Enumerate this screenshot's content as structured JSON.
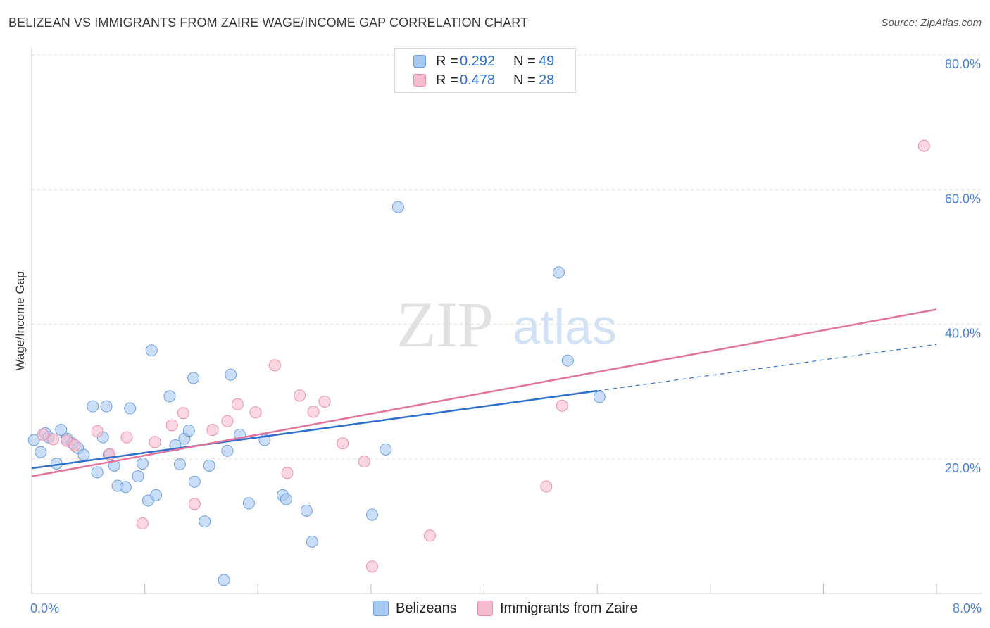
{
  "header": {
    "title": "BELIZEAN VS IMMIGRANTS FROM ZAIRE WAGE/INCOME GAP CORRELATION CHART",
    "source": "Source: ZipAtlas.com"
  },
  "watermark": {
    "zip": "ZIP",
    "atlas": "atlas"
  },
  "colors": {
    "blue_fill": "#a9c8f2",
    "blue_stroke": "#6d9ee0",
    "blue_line": "#2e6fcc",
    "pink_fill": "#f6bccd",
    "pink_stroke": "#ec8eaa",
    "pink_line": "#e2749b",
    "tick_label": "#4a7fd0",
    "grid": "#dedede"
  },
  "legend": {
    "rows": [
      {
        "r_label": "R =",
        "r_value": "0.292",
        "n_label": "N =",
        "n_value": "49",
        "color": "#a9c8f2",
        "stroke": "#6d9ee0"
      },
      {
        "r_label": "R =",
        "r_value": "0.478",
        "n_label": "N =",
        "n_value": "28",
        "color": "#f6bccd",
        "stroke": "#ec8eaa"
      }
    ]
  },
  "bottom_legend": {
    "series_a": "Belizeans",
    "series_b": "Immigrants from Zaire"
  },
  "chart_data": {
    "type": "scatter",
    "title": "BELIZEAN VS IMMIGRANTS FROM ZAIRE WAGE/INCOME GAP CORRELATION CHART",
    "xlabel": "",
    "ylabel": "Wage/Income Gap",
    "xlim": [
      0,
      8
    ],
    "ylim": [
      0,
      80
    ],
    "x_tick_labels": [
      "0.0%",
      "8.0%"
    ],
    "y_ticks": [
      20,
      40,
      60,
      80
    ],
    "y_tick_labels": [
      "20.0%",
      "40.0%",
      "60.0%",
      "80.0%"
    ],
    "grid": true,
    "legend_position": "top-center",
    "series": [
      {
        "name": "Belizeans",
        "r": 0.292,
        "n": 49,
        "trend": {
          "x0": 0.0,
          "y0": 18.6,
          "x1": 5.0,
          "y1": 30.1,
          "dashed_to_x": 8.0,
          "dashed_to_y": 37.0
        },
        "points": [
          [
            0.02,
            22.8
          ],
          [
            0.08,
            21.0
          ],
          [
            0.12,
            23.8
          ],
          [
            0.15,
            23.2
          ],
          [
            0.22,
            19.3
          ],
          [
            0.26,
            24.3
          ],
          [
            0.31,
            23.0
          ],
          [
            0.36,
            22.3
          ],
          [
            0.41,
            21.6
          ],
          [
            0.46,
            20.6
          ],
          [
            0.54,
            27.8
          ],
          [
            0.58,
            18.0
          ],
          [
            0.63,
            23.2
          ],
          [
            0.68,
            20.6
          ],
          [
            0.73,
            19.0
          ],
          [
            0.76,
            16.0
          ],
          [
            0.83,
            15.8
          ],
          [
            0.87,
            27.5
          ],
          [
            0.94,
            17.4
          ],
          [
            0.98,
            19.3
          ],
          [
            1.03,
            13.8
          ],
          [
            1.06,
            36.1
          ],
          [
            1.1,
            14.6
          ],
          [
            1.22,
            29.3
          ],
          [
            1.27,
            22.0
          ],
          [
            1.31,
            19.2
          ],
          [
            1.35,
            23.0
          ],
          [
            1.39,
            24.2
          ],
          [
            1.43,
            32.0
          ],
          [
            1.44,
            16.6
          ],
          [
            1.53,
            10.7
          ],
          [
            1.57,
            19.0
          ],
          [
            1.7,
            2.0
          ],
          [
            1.73,
            21.2
          ],
          [
            1.76,
            32.5
          ],
          [
            1.84,
            23.6
          ],
          [
            1.92,
            13.4
          ],
          [
            2.06,
            22.8
          ],
          [
            2.22,
            14.6
          ],
          [
            2.25,
            14.0
          ],
          [
            2.43,
            12.3
          ],
          [
            2.48,
            7.7
          ],
          [
            3.01,
            11.7
          ],
          [
            3.13,
            21.4
          ],
          [
            3.24,
            57.4
          ],
          [
            4.66,
            47.7
          ],
          [
            4.74,
            34.6
          ],
          [
            5.02,
            29.2
          ],
          [
            0.66,
            27.8
          ]
        ]
      },
      {
        "name": "Immigrants from Zaire",
        "r": 0.478,
        "n": 28,
        "trend": {
          "x0": 0.0,
          "y0": 17.4,
          "x1": 8.0,
          "y1": 42.2
        },
        "points": [
          [
            0.1,
            23.6
          ],
          [
            0.19,
            22.9
          ],
          [
            0.31,
            22.7
          ],
          [
            0.38,
            22.0
          ],
          [
            0.58,
            24.1
          ],
          [
            0.69,
            20.7
          ],
          [
            0.84,
            23.2
          ],
          [
            0.98,
            10.4
          ],
          [
            1.09,
            22.5
          ],
          [
            1.24,
            25.0
          ],
          [
            1.34,
            26.8
          ],
          [
            1.44,
            13.3
          ],
          [
            1.6,
            24.3
          ],
          [
            1.73,
            25.6
          ],
          [
            1.82,
            28.1
          ],
          [
            1.98,
            26.9
          ],
          [
            2.15,
            33.9
          ],
          [
            2.26,
            17.9
          ],
          [
            2.37,
            29.4
          ],
          [
            2.49,
            27.0
          ],
          [
            2.59,
            28.5
          ],
          [
            2.75,
            22.3
          ],
          [
            2.94,
            19.6
          ],
          [
            3.01,
            4.0
          ],
          [
            3.52,
            8.6
          ],
          [
            4.55,
            15.9
          ],
          [
            4.69,
            27.9
          ],
          [
            7.89,
            66.5
          ]
        ]
      }
    ]
  }
}
